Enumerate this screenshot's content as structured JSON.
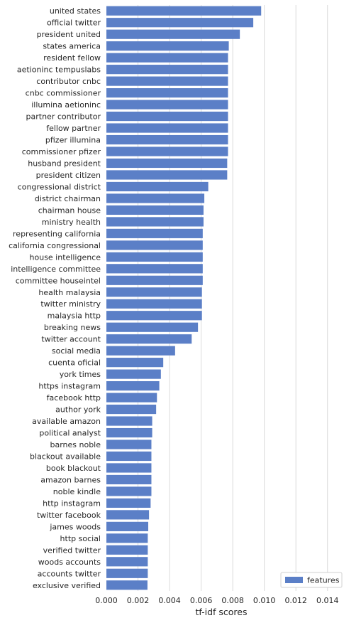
{
  "chart_data": {
    "type": "bar",
    "orientation": "horizontal",
    "title": "",
    "xlabel": "tf-idf scores",
    "ylabel": "",
    "xlim": [
      0,
      0.015
    ],
    "xticks": [
      "0.000",
      "0.002",
      "0.004",
      "0.006",
      "0.008",
      "0.010",
      "0.012",
      "0.014"
    ],
    "xtick_values": [
      0,
      0.002,
      0.004,
      0.006,
      0.008,
      0.01,
      0.012,
      0.014
    ],
    "grid": true,
    "legend": {
      "placement": "bottom-right",
      "entries": [
        "features"
      ]
    },
    "series": [
      {
        "name": "features",
        "color": "#5b7fc7",
        "categories": [
          "united states",
          "official twitter",
          "president united",
          "states america",
          "resident fellow",
          "aetioninc tempuslabs",
          "contributor cnbc",
          "cnbc commissioner",
          "illumina aetioninc",
          "partner contributor",
          "fellow partner",
          "pfizer illumina",
          "commissioner pfizer",
          "husband president",
          "president citizen",
          "congressional district",
          "district chairman",
          "chairman house",
          "ministry health",
          "representing california",
          "california congressional",
          "house intelligence",
          "intelligence committee",
          "committee houseintel",
          "health malaysia",
          "twitter ministry",
          "malaysia http",
          "breaking news",
          "twitter account",
          "social media",
          "cuenta oficial",
          "york times",
          "https instagram",
          "facebook http",
          "author york",
          "available amazon",
          "political analyst",
          "barnes noble",
          "blackout available",
          "book blackout",
          "amazon barnes",
          "noble kindle",
          "http instagram",
          "twitter facebook",
          "james woods",
          "http social",
          "verified twitter",
          "woods accounts",
          "accounts twitter",
          "exclusive verified"
        ],
        "values": [
          0.0098,
          0.0093,
          0.00845,
          0.00775,
          0.0077,
          0.0077,
          0.0077,
          0.0077,
          0.0077,
          0.0077,
          0.0077,
          0.0077,
          0.0077,
          0.00765,
          0.00765,
          0.00645,
          0.0062,
          0.00615,
          0.00615,
          0.0061,
          0.0061,
          0.0061,
          0.0061,
          0.0061,
          0.00605,
          0.00605,
          0.00605,
          0.0058,
          0.0054,
          0.00435,
          0.0036,
          0.00345,
          0.00335,
          0.0032,
          0.00315,
          0.0029,
          0.0029,
          0.00285,
          0.00285,
          0.00285,
          0.00285,
          0.00285,
          0.0028,
          0.0027,
          0.00265,
          0.00262,
          0.00262,
          0.00262,
          0.00262,
          0.0026
        ]
      }
    ]
  }
}
